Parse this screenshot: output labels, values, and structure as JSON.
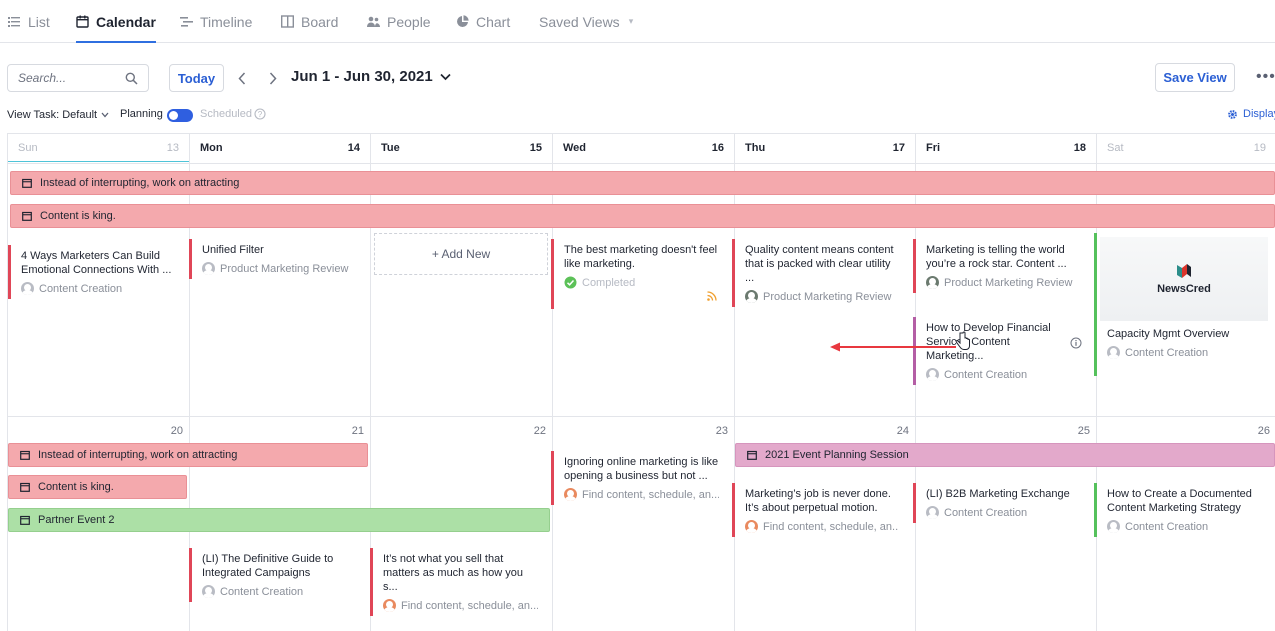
{
  "tabs": [
    {
      "label": "List",
      "icon": "list-icon"
    },
    {
      "label": "Calendar",
      "icon": "calendar-icon",
      "active": true
    },
    {
      "label": "Timeline",
      "icon": "timeline-icon"
    },
    {
      "label": "Board",
      "icon": "board-icon"
    },
    {
      "label": "People",
      "icon": "people-icon"
    },
    {
      "label": "Chart",
      "icon": "chart-icon"
    },
    {
      "label": "Saved Views",
      "icon": "chevron-down-icon"
    }
  ],
  "toolbar": {
    "search_placeholder": "Search...",
    "today_label": "Today",
    "date_range": "Jun 1 - Jun 30, 2021",
    "save_view_label": "Save View"
  },
  "options": {
    "view_task_label": "View Task: Default",
    "planning_label": "Planning",
    "scheduled_label": "Scheduled",
    "planning_on": true,
    "display_label": "Display"
  },
  "colors": {
    "accent": "#2f6fe0",
    "event_red": "#f4a9ad",
    "event_green": "#ace0a6",
    "event_purple": "#e3a9cb",
    "card_red": "#e04657",
    "card_green": "#55c15c",
    "card_purple": "#b45ea5"
  },
  "week1": {
    "days": [
      {
        "name": "Sun",
        "num": "13"
      },
      {
        "name": "Mon",
        "num": "14"
      },
      {
        "name": "Tue",
        "num": "15"
      },
      {
        "name": "Wed",
        "num": "16"
      },
      {
        "name": "Thu",
        "num": "17"
      },
      {
        "name": "Fri",
        "num": "18"
      },
      {
        "name": "Sat",
        "num": "19"
      }
    ],
    "bars": [
      {
        "label": "Instead of interrupting, work on attracting"
      },
      {
        "label": "Content is king."
      }
    ],
    "cards": [
      {
        "title": "4 Ways Marketers Can Build Emotional Connections With ...",
        "meta": "Content Creation"
      },
      {
        "title": "Unified Filter",
        "meta": "Product Marketing Review"
      },
      {
        "title": "The best marketing doesn't feel like marketing.",
        "meta": "Completed"
      },
      {
        "title": "Quality content means content that is packed with clear utility ...",
        "meta": "Product Marketing Review"
      },
      {
        "title": "Marketing is telling the world you’re a rock star. Content ...",
        "meta": "Product Marketing Review"
      },
      {
        "title": "How to Develop Financial Services Content Marketing...",
        "meta": "Content Creation"
      },
      {
        "title": "Capacity Mgmt Overview",
        "meta": "Content Creation",
        "thumb_text": "NewsCred"
      }
    ],
    "add_new_label": "+ Add New"
  },
  "week2": {
    "days": [
      "20",
      "21",
      "22",
      "23",
      "24",
      "25",
      "26"
    ],
    "bars": [
      {
        "label": "Instead of interrupting, work on attracting"
      },
      {
        "label": "Content is king."
      },
      {
        "label": "Partner Event 2"
      },
      {
        "label": "2021 Event Planning Session"
      }
    ],
    "cards": [
      {
        "title": "Ignoring online marketing is like opening a business but not ...",
        "meta": "Find content, schedule, an..."
      },
      {
        "title": "Marketing’s job is never done. It’s about perpetual motion.",
        "meta": "Find content, schedule, an..."
      },
      {
        "title": "(LI) B2B Marketing Exchange",
        "meta": "Content Creation"
      },
      {
        "title": "How to Create a Documented Content Marketing Strategy",
        "meta": "Content Creation"
      },
      {
        "title": "(LI) The Definitive Guide to Integrated Campaigns",
        "meta": "Content Creation"
      },
      {
        "title": "It’s not what you sell that matters as much as how you s...",
        "meta": "Find content, schedule, an..."
      }
    ]
  }
}
